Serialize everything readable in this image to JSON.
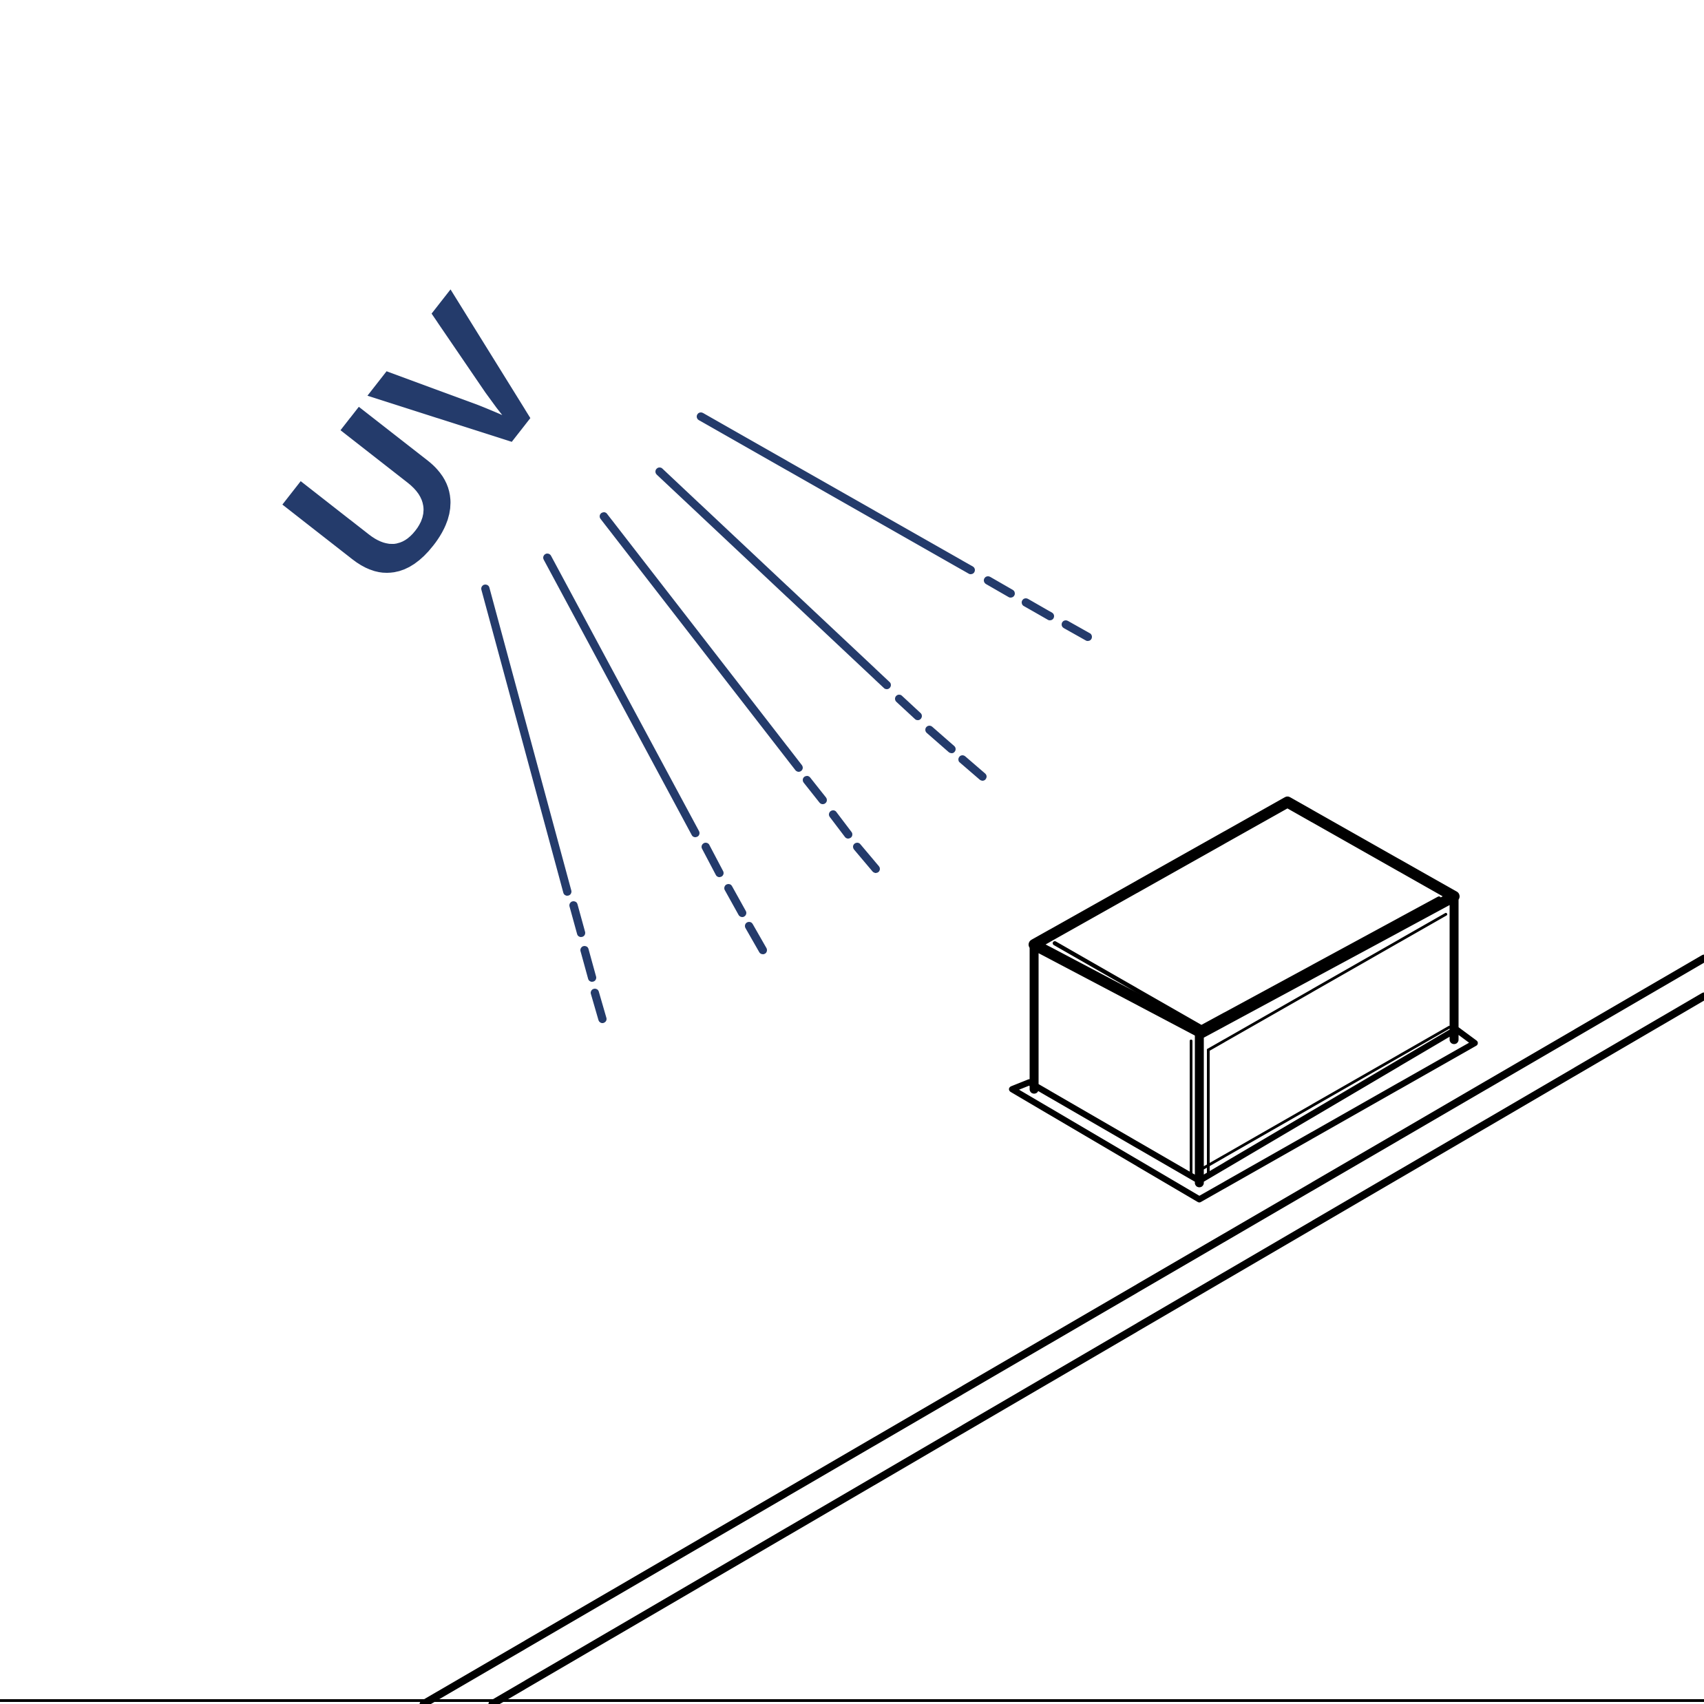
{
  "uv_label": {
    "text": "UV"
  },
  "icons": {
    "light_rays": "uv-light-rays-icon",
    "box": "isometric-box-icon",
    "surface": "surface-platform-icon"
  },
  "colors": {
    "uv": "#243b6b",
    "outline": "#000000",
    "background": "#ffffff"
  }
}
